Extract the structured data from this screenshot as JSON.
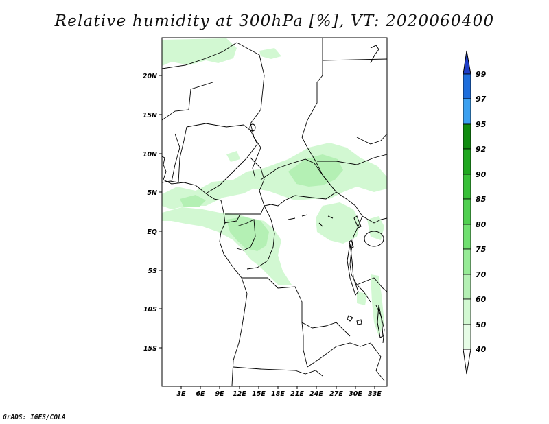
{
  "title": "Relative humidity at 300hPa [%], VT: 2020060400",
  "credit": "GrADS: IGES/COLA",
  "map": {
    "lon_range": [
      0,
      35
    ],
    "lat_range": [
      -20,
      25
    ],
    "lat_ticks": [
      "20N",
      "15N",
      "10N",
      "5N",
      "EQ",
      "5S",
      "10S",
      "15S"
    ],
    "lon_ticks": [
      "3E",
      "6E",
      "9E",
      "12E",
      "15E",
      "18E",
      "21E",
      "24E",
      "27E",
      "30E",
      "33E"
    ]
  },
  "colorbar": {
    "labels": [
      "99",
      "97",
      "95",
      "92",
      "90",
      "85",
      "80",
      "75",
      "70",
      "60",
      "50",
      "40"
    ],
    "colors": [
      "#1e3ec8",
      "#1e6edc",
      "#3ca0f0",
      "#108c10",
      "#20a820",
      "#38c038",
      "#50d050",
      "#70e070",
      "#96eb96",
      "#b4f0b4",
      "#d2f8d2",
      "#e6fce6",
      "#ffffff"
    ]
  },
  "colors": {
    "rh_light": "#d2f8d2",
    "rh_mid": "#b4f0b4",
    "rh_high": "#96eb96",
    "border": "#000000"
  }
}
